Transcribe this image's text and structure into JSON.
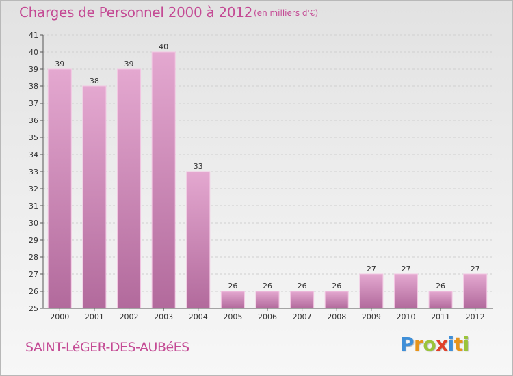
{
  "header": {
    "title": "Charges de Personnel 2000 à 2012",
    "subtitle": "(en milliers d'€)"
  },
  "footer": {
    "commune": "SAINT-LéGER-DES-AUBéES",
    "logo_letters": [
      "P",
      "r",
      "o",
      "x",
      "i",
      "t",
      "i"
    ]
  },
  "colors": {
    "title": "#c44a94",
    "bar_top": "#e4a8d0",
    "bar_bottom": "#b26a9c",
    "logo": [
      "#3f8fd8",
      "#e8941a",
      "#9ac43a",
      "#e0402a",
      "#3f8fd8",
      "#e8941a",
      "#9ac43a"
    ]
  },
  "chart_data": {
    "type": "bar",
    "categories": [
      "2000",
      "2001",
      "2002",
      "2003",
      "2004",
      "2005",
      "2006",
      "2007",
      "2008",
      "2009",
      "2010",
      "2011",
      "2012"
    ],
    "values": [
      39,
      38,
      39,
      40,
      33,
      26,
      26,
      26,
      26,
      27,
      27,
      26,
      27
    ],
    "data_labels": [
      "39",
      "38",
      "39",
      "40",
      "33",
      "26",
      "26",
      "26",
      "26",
      "27",
      "27",
      "26",
      "27"
    ],
    "ylim": [
      25,
      41
    ],
    "yticks": [
      "25",
      "26",
      "27",
      "28",
      "29",
      "30",
      "31",
      "32",
      "33",
      "34",
      "35",
      "36",
      "37",
      "38",
      "39",
      "40",
      "41"
    ],
    "grid": true,
    "legend": "none"
  }
}
